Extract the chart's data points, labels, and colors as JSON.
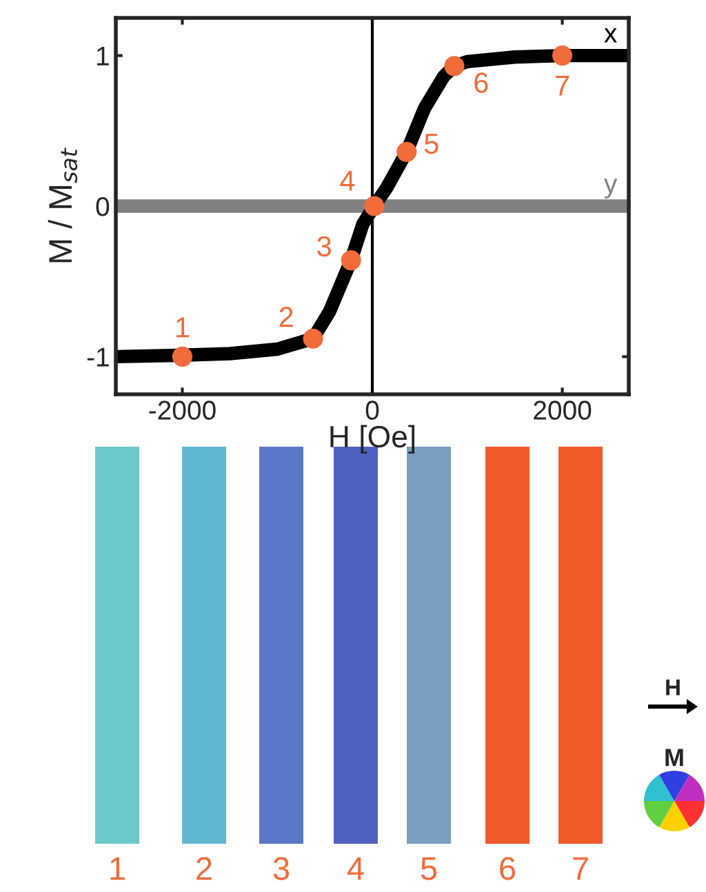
{
  "chart_data": {
    "type": "line",
    "xlabel": "H [Oe]",
    "ylabel": "M / M$_{sat}$",
    "xlim": [
      -2700,
      2700
    ],
    "ylim": [
      -1.25,
      1.25
    ],
    "xticks": [
      -2000,
      0,
      2000
    ],
    "yticks": [
      -1,
      0,
      1
    ],
    "grid": false,
    "legend": false,
    "ref_lines": [
      {
        "axis": "x",
        "value": 0,
        "color": "#000000"
      }
    ],
    "series": [
      {
        "name": "y",
        "color": "#808080",
        "x": [
          -2700,
          2700
        ],
        "values": [
          0,
          0
        ]
      },
      {
        "name": "x",
        "color": "#000000",
        "x": [
          -2700,
          -2000,
          -1500,
          -1000,
          -624,
          -450,
          -224,
          -100,
          20,
          150,
          361,
          550,
          750,
          863,
          1000,
          1500,
          2000,
          2700
        ],
        "values": [
          -1,
          -0.99,
          -0.98,
          -0.95,
          -0.88,
          -0.7,
          -0.36,
          -0.12,
          0,
          0.12,
          0.36,
          0.65,
          0.86,
          0.93,
          0.96,
          0.99,
          1,
          1
        ]
      },
      {
        "type": "scatter",
        "color": "#f26b3a",
        "marker": "circle",
        "x": [
          -2000,
          -624,
          -224,
          20,
          361,
          863,
          2000
        ],
        "values": [
          -1,
          -0.88,
          -0.36,
          0,
          0.36,
          0.93,
          1
        ]
      }
    ],
    "annotations": [
      {
        "text": "1",
        "x": -2000,
        "y": -1
      },
      {
        "text": "2",
        "x": -624,
        "y": -0.88
      },
      {
        "text": "3",
        "x": -224,
        "y": -0.36
      },
      {
        "text": "4",
        "x": 20,
        "y": 0
      },
      {
        "text": "5",
        "x": 361,
        "y": 0.36
      },
      {
        "text": "6",
        "x": 863,
        "y": 0.93
      },
      {
        "text": "7",
        "x": 2000,
        "y": 1
      },
      "1",
      "2",
      "3",
      "4",
      "5",
      "6",
      "7",
      "H",
      "M"
    ]
  }
}
